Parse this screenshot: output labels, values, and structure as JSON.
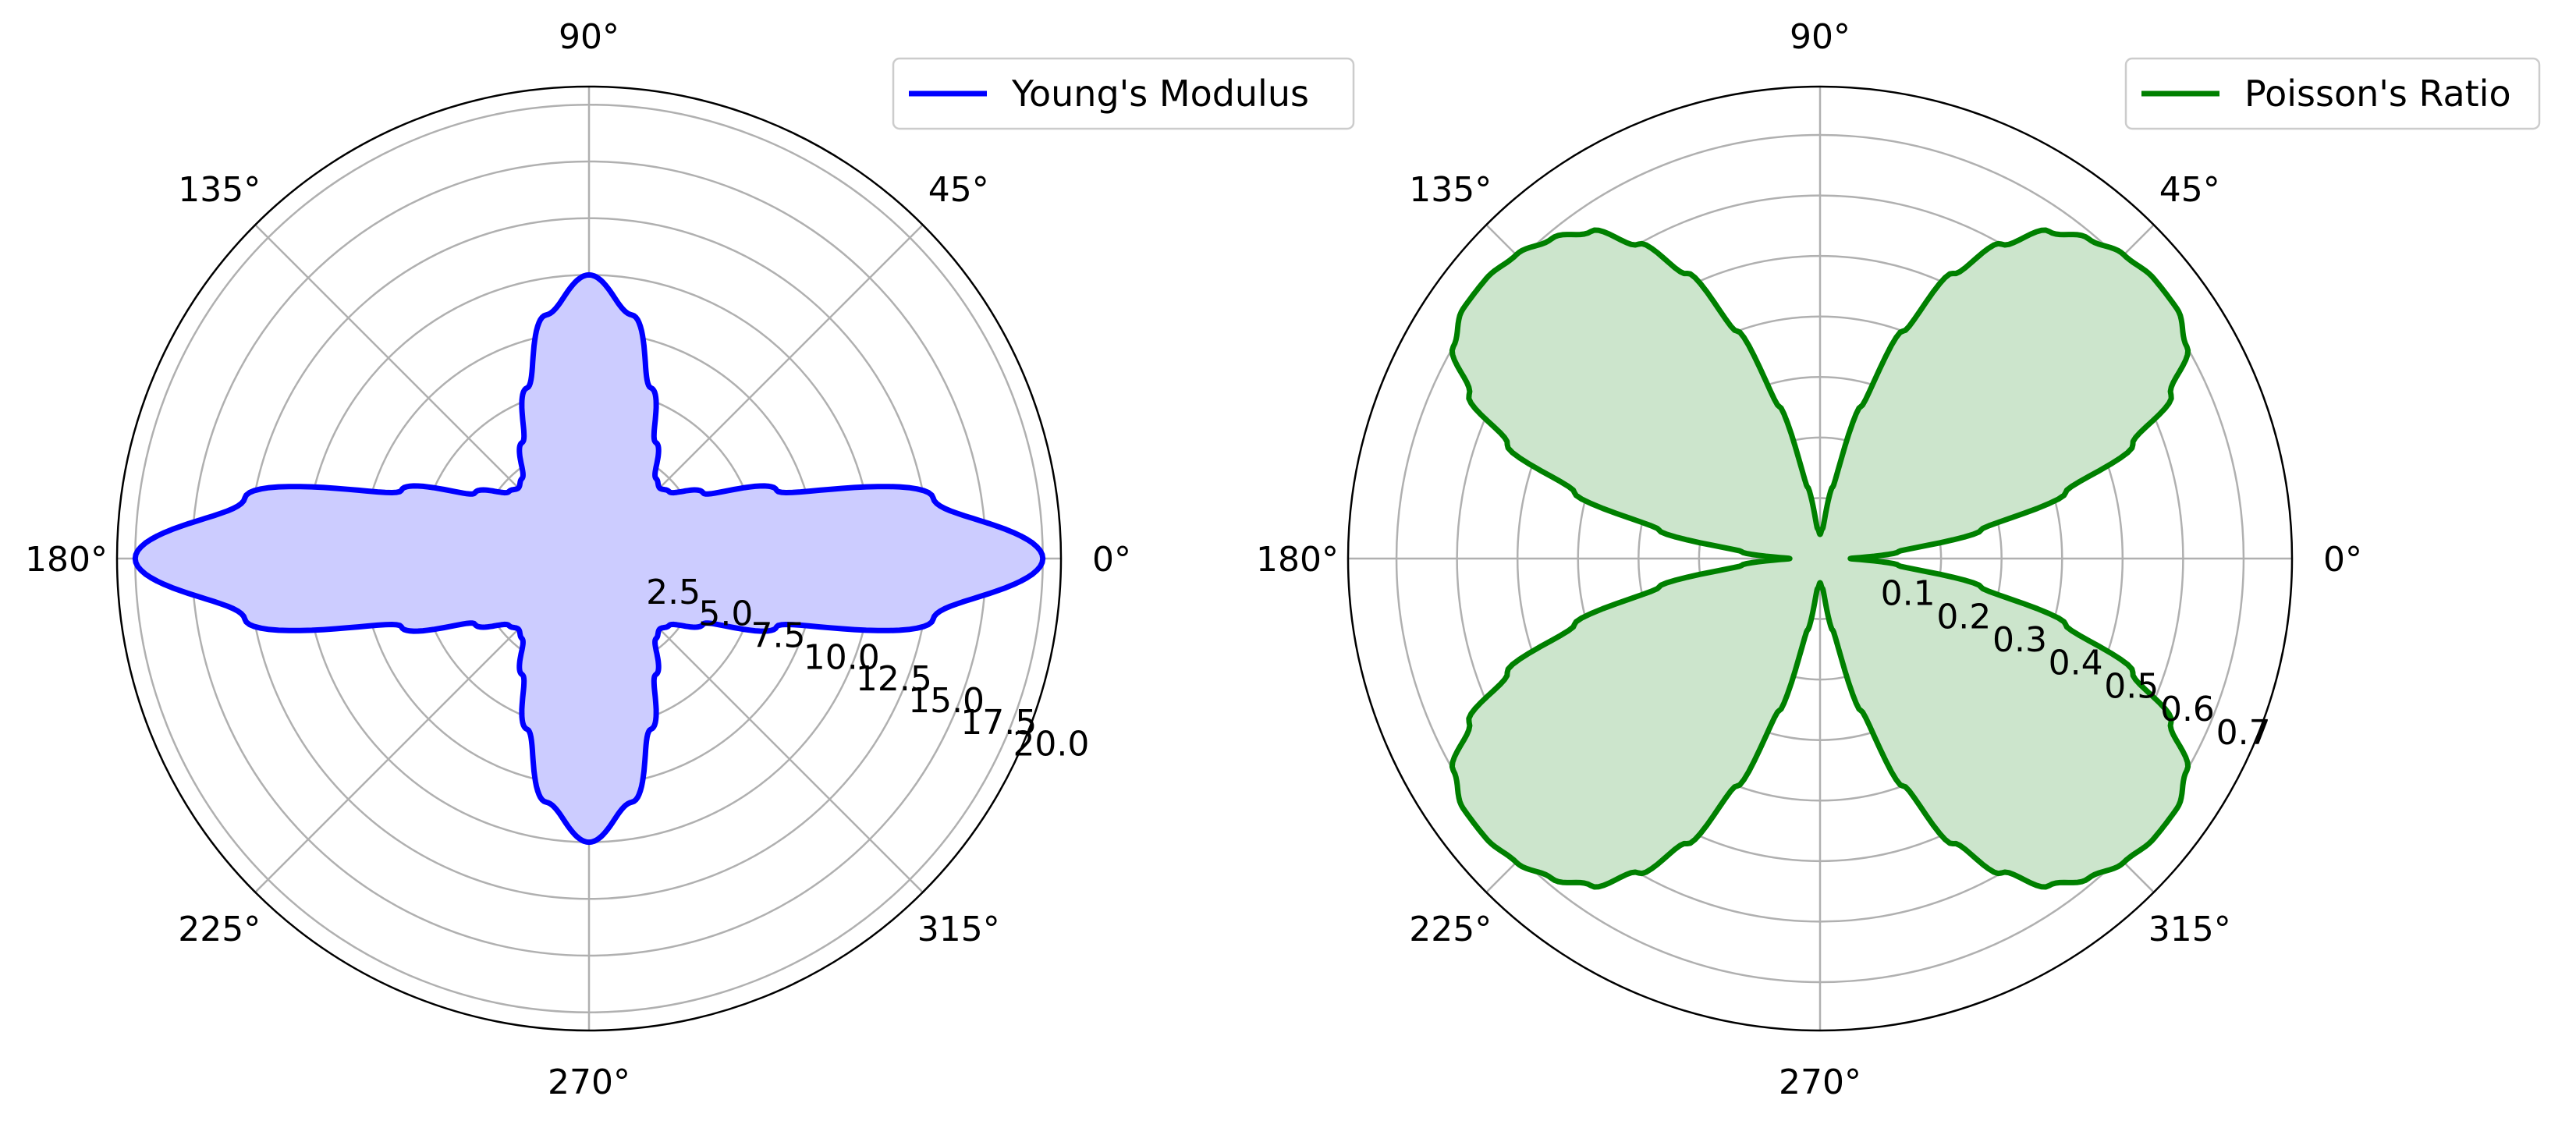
{
  "chart_data": [
    {
      "type": "polar",
      "title": "",
      "series": [
        {
          "name": "Young's Modulus",
          "color": "#0000ff",
          "fill_color": "#ccccff",
          "values_deg": [
            0,
            10,
            20,
            30,
            40,
            45,
            50,
            60,
            70,
            80,
            90,
            100,
            110,
            120,
            130,
            135,
            140,
            150,
            160,
            170,
            180,
            190,
            200,
            210,
            220,
            225,
            230,
            240,
            250,
            260,
            270,
            280,
            290,
            300,
            310,
            315,
            320,
            330,
            340,
            350
          ],
          "values_r": [
            20.0,
            15.4,
            8.8,
            5.8,
            4.6,
            4.4,
            4.6,
            5.9,
            8.0,
            10.9,
            12.5,
            10.9,
            8.0,
            5.9,
            4.6,
            4.4,
            4.6,
            5.8,
            8.8,
            15.4,
            20.0,
            15.4,
            8.8,
            5.8,
            4.6,
            4.4,
            4.6,
            5.9,
            8.0,
            10.9,
            12.5,
            10.9,
            8.0,
            5.9,
            4.6,
            4.4,
            4.6,
            5.8,
            8.8,
            15.4
          ]
        }
      ],
      "r_ticks": [
        "2.5",
        "5.0",
        "7.5",
        "10.0",
        "12.5",
        "15.0",
        "17.5",
        "20.0"
      ],
      "r_tick_values": [
        2.5,
        5.0,
        7.5,
        10.0,
        12.5,
        15.0,
        17.5,
        20.0
      ],
      "rlim": [
        0,
        20.8
      ],
      "theta_ticks": [
        "0°",
        "45°",
        "90°",
        "135°",
        "180°",
        "225°",
        "270°",
        "315°"
      ],
      "legend_position": "top-right",
      "grid": true
    },
    {
      "type": "polar",
      "title": "",
      "series": [
        {
          "name": "Poisson's Ratio",
          "color": "#008000",
          "fill_color": "#cce5cc",
          "values_deg": [
            0,
            5,
            10,
            15,
            20,
            25,
            30,
            35,
            40,
            45,
            50,
            55,
            60,
            65,
            70,
            75,
            80,
            85,
            90
          ],
          "values_r": [
            0.05,
            0.13,
            0.27,
            0.42,
            0.55,
            0.64,
            0.7,
            0.72,
            0.72,
            0.71,
            0.69,
            0.66,
            0.6,
            0.52,
            0.4,
            0.26,
            0.12,
            0.05,
            0.04
          ],
          "symmetry": "four-fold mirrored about 45°"
        }
      ],
      "r_ticks": [
        "0.1",
        "0.2",
        "0.3",
        "0.4",
        "0.5",
        "0.6",
        "0.7"
      ],
      "r_tick_values": [
        0.1,
        0.2,
        0.3,
        0.4,
        0.5,
        0.6,
        0.7
      ],
      "rlim": [
        0,
        0.78
      ],
      "theta_ticks": [
        "0°",
        "45°",
        "90°",
        "135°",
        "180°",
        "225°",
        "270°",
        "315°"
      ],
      "legend_position": "top-right",
      "grid": true
    }
  ]
}
